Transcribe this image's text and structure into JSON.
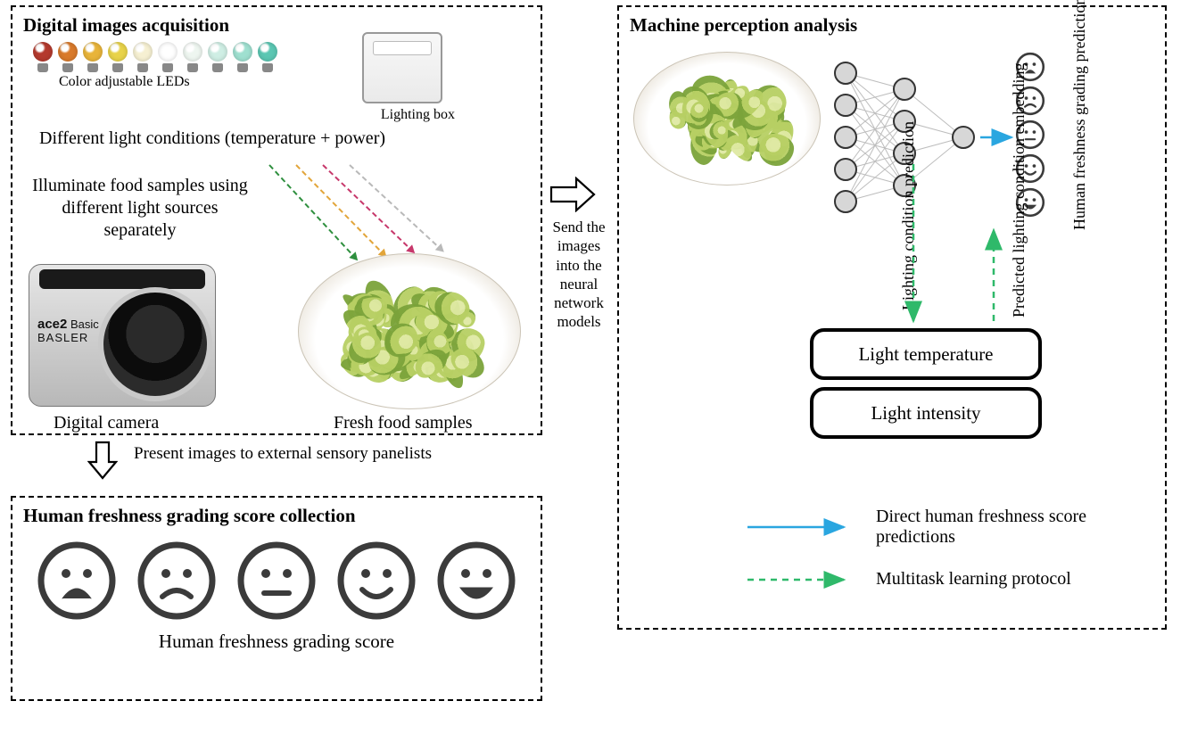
{
  "panel1": {
    "title": "Digital images acquisition",
    "led_colors": [
      "#b43a2e",
      "#d97a2b",
      "#e8b43a",
      "#e8d34a",
      "#f6f0d2",
      "#ffffff",
      "#eef6f0",
      "#cfeee4",
      "#9fe0d0",
      "#5bc7b3"
    ],
    "led_caption": "Color adjustable LEDs",
    "lightbox_caption": "Lighting box",
    "conditions_text": "Different light conditions (temperature + power)",
    "illuminate_text": "Illuminate food samples using different light sources separately",
    "ray_colors": [
      "#2e8f3e",
      "#e2a53a",
      "#c7386b",
      "#b9b9b9"
    ],
    "camera_brand_top": "ace2",
    "camera_brand_side": "Basic",
    "camera_brand_bottom": "BASLER",
    "camera_caption": "Digital camera",
    "food_caption": "Fresh food samples"
  },
  "between": {
    "present_text": "Present images to external sensory panelists",
    "send_text": "Send the images into the neural network models"
  },
  "panel3": {
    "title": "Human freshness grading score collection",
    "face_levels": [
      "very-sad",
      "sad",
      "neutral",
      "happy",
      "very-happy"
    ],
    "caption": "Human freshness grading score",
    "face_stroke": "#3b3b3b"
  },
  "panel2": {
    "title": "Machine perception analysis",
    "rot_label_lighting": "Lighting condition prediction",
    "rot_label_grading": "Human freshness grading predictions",
    "rot_label_embedding": "Predicted lighting condition embedding",
    "box_temp": "Light temperature",
    "box_intensity": "Light intensity",
    "legend_direct": "Direct human freshness score predictions",
    "legend_multitask": "Multitask learning protocol",
    "arrow_blue": "#2aa6e0",
    "arrow_green": "#2fb96a",
    "node_fill": "#d7d7d7",
    "node_stroke": "#333333",
    "nn_layers": [
      5,
      4,
      1
    ],
    "mini_face_levels_top_to_bottom": [
      "very-sad",
      "sad",
      "neutral",
      "happy",
      "very-happy"
    ]
  },
  "style": {
    "dash_border": "#000000",
    "lettuce_colors": [
      "#dfe9a3",
      "#b7cf63",
      "#7ba33a"
    ]
  }
}
